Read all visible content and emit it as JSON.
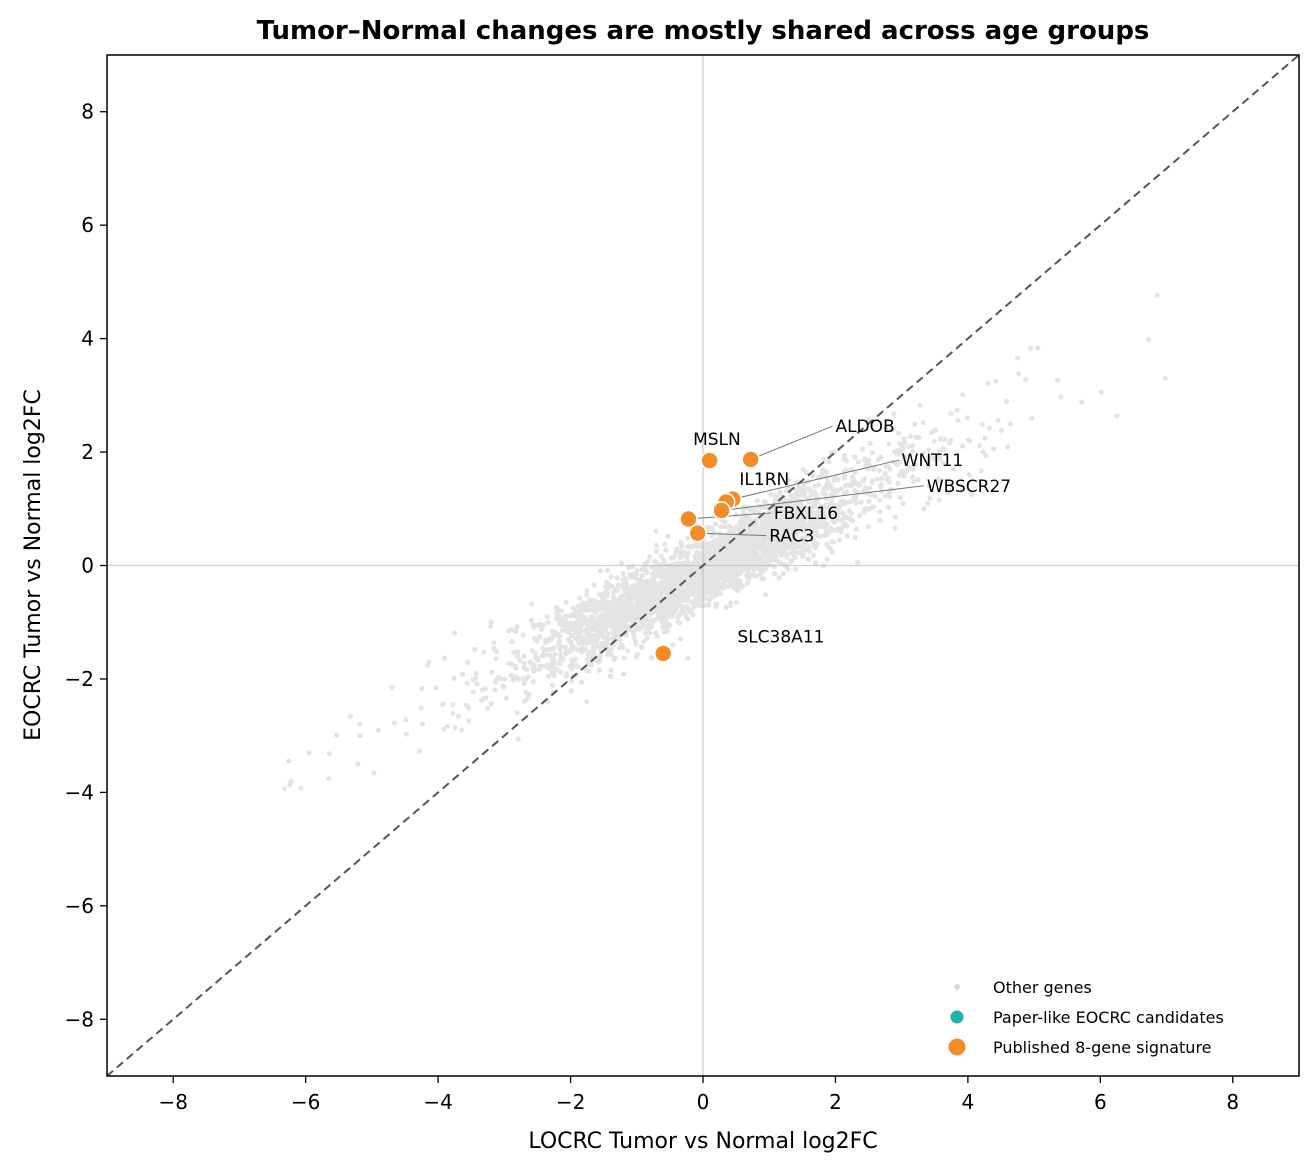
{
  "chart_data": {
    "type": "scatter",
    "title": "Tumor–Normal changes are mostly shared across age groups",
    "xlabel": "LOCRC Tumor vs Normal log2FC",
    "ylabel": "EOCRC Tumor vs Normal log2FC",
    "xlim": [
      -9,
      9
    ],
    "ylim": [
      -9,
      9
    ],
    "xticks": [
      -8,
      -6,
      -4,
      -2,
      0,
      2,
      4,
      6,
      8
    ],
    "yticks": [
      -8,
      -6,
      -4,
      -2,
      0,
      2,
      4,
      6,
      8
    ],
    "xtick_labels": [
      "−8",
      "−6",
      "−4",
      "−2",
      "0",
      "2",
      "4",
      "6",
      "8"
    ],
    "ytick_labels": [
      "−8",
      "−6",
      "−4",
      "−2",
      "0",
      "2",
      "4",
      "6",
      "8"
    ],
    "reference_line": "y = x (dashed)",
    "zero_lines": true,
    "legend_position": "bottom-right",
    "colors": {
      "other": "#b3b3b3",
      "candidates": "#20b2aa",
      "signature": "#f28c28",
      "diagonal": "#555555",
      "zero_line": "#d0d0d0"
    },
    "series": [
      {
        "name": "Other genes",
        "description": "dense cloud of background genes along slope ~0.6"
      },
      {
        "name": "Paper-like EOCRC candidates",
        "points": []
      },
      {
        "name": "Published 8-gene signature",
        "points": [
          {
            "label": "MSLN",
            "x": 0.1,
            "y": 1.85
          },
          {
            "label": "ALDOB",
            "x": 0.72,
            "y": 1.87
          },
          {
            "label": "WNT11",
            "x": 0.45,
            "y": 1.17
          },
          {
            "label": "IL1RN",
            "x": 0.35,
            "y": 1.12
          },
          {
            "label": "WBSCR27",
            "x": 0.28,
            "y": 0.97
          },
          {
            "label": "FBXL16",
            "x": -0.22,
            "y": 0.82
          },
          {
            "label": "RAC3",
            "x": -0.08,
            "y": 0.57
          },
          {
            "label": "SLC38A11",
            "x": -0.6,
            "y": -1.55
          }
        ]
      }
    ],
    "annotations": [
      {
        "text": "MSLN",
        "x": -0.15,
        "y": 2.12,
        "leader": false
      },
      {
        "text": "ALDOB",
        "x": 2.0,
        "y": 2.35,
        "leader": true
      },
      {
        "text": "WNT11",
        "x": 3.0,
        "y": 1.75,
        "leader": true
      },
      {
        "text": "IL1RN",
        "x": 0.55,
        "y": 1.42,
        "leader": false
      },
      {
        "text": "WBSCR27",
        "x": 3.38,
        "y": 1.3,
        "leader": true
      },
      {
        "text": "FBXL16",
        "x": 1.07,
        "y": 0.82,
        "leader": true
      },
      {
        "text": "RAC3",
        "x": 1.0,
        "y": 0.42,
        "leader": true
      },
      {
        "text": "SLC38A11",
        "x": 0.52,
        "y": -1.36,
        "leader": false
      }
    ]
  }
}
